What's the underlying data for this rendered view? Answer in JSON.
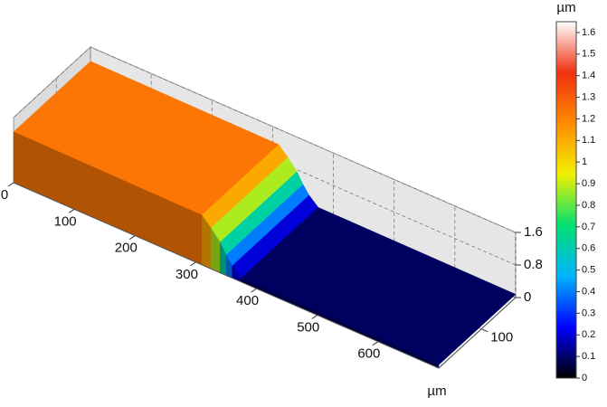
{
  "chart_data": {
    "type": "surface3d",
    "x": [
      0,
      310,
      325,
      340,
      350,
      360,
      375,
      700
    ],
    "z": [
      1.25,
      1.22,
      1.0,
      0.75,
      0.5,
      0.3,
      0.1,
      0.08
    ],
    "xlim": [
      0,
      700
    ],
    "xticks": [
      0,
      100,
      200,
      300,
      400,
      500,
      600
    ],
    "ylim": [
      0,
      180
    ],
    "yticks": [
      100
    ],
    "zlim": [
      0,
      1.6
    ],
    "zticks": [
      0,
      0.8,
      1.6
    ],
    "xlabel": "µm",
    "clabel": "µm",
    "clim": [
      0,
      1.65
    ],
    "cticks": [
      0,
      0.1,
      0.2,
      0.3,
      0.4,
      0.5,
      0.6,
      0.7,
      0.8,
      0.9,
      1,
      1.1,
      1.2,
      1.3,
      1.4,
      1.5,
      1.6
    ],
    "colormap": [
      "#000000",
      "#0000ff",
      "#00b4ff",
      "#00e070",
      "#f0f000",
      "#ff8c00",
      "#f03010",
      "#ffffff"
    ],
    "grid": true
  }
}
